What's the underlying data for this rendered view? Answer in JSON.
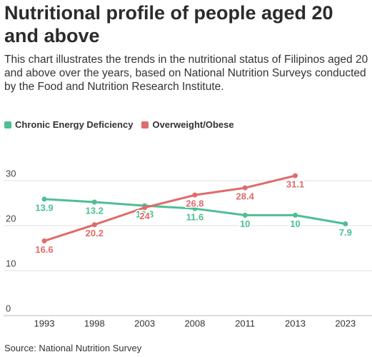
{
  "chart_data": {
    "type": "line",
    "title": "Nutritional profile of people aged 20 and above",
    "subtitle": "This chart illustrates the trends in the nutritional status of Filipinos aged 20 and above over the years, based on National Nutrition Surveys conducted by the Food and Nutrition Research Institute.",
    "source": "Source: National Nutrition Survey",
    "categories": [
      "1993",
      "1998",
      "2003",
      "2008",
      "2011",
      "2013",
      "2023"
    ],
    "series": [
      {
        "name": "Chronic Energy Deficiency",
        "color": "#4dbf93",
        "axis": "y2",
        "values": [
          13.9,
          13.2,
          12.3,
          11.6,
          10,
          10,
          7.9
        ]
      },
      {
        "name": "Overweight/Obese",
        "color": "#e06b6b",
        "values": [
          16.6,
          20.2,
          24.0,
          26.8,
          28.4,
          31.1,
          null
        ]
      }
    ],
    "ylim": [
      0,
      30
    ],
    "yticks": [
      0,
      10,
      20,
      30
    ],
    "y2lim": [
      -14.4,
      18.4
    ],
    "grid": true
  }
}
